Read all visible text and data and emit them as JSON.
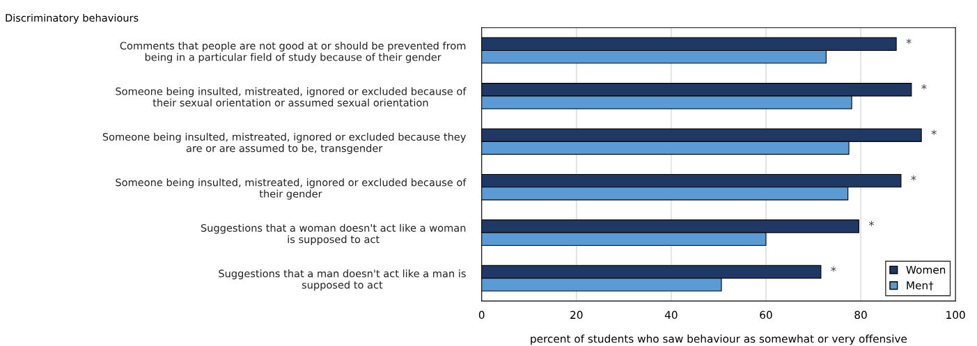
{
  "chart_data": {
    "type": "bar",
    "orientation": "horizontal",
    "title": "Discriminatory behaviours",
    "xlabel": "percent of students who saw behaviour as somewhat or very offensive",
    "categories": [
      "Comments that people are not good at or should be prevented from\nbeing in a particular field of study because of their gender",
      "Someone being insulted, mistreated, ignored or excluded because of\ntheir sexual orientation or assumed sexual orientation",
      "Someone being insulted, mistreated, ignored or excluded because they\nare or are assumed to be, transgender",
      "Someone being insulted, mistreated, ignored or excluded because of\ntheir gender",
      "Suggestions that a woman doesn't act like a woman\nis supposed to act",
      "Suggestions that a man doesn't act like a man is\nsupposed to act"
    ],
    "series": [
      {
        "name": "Women",
        "color": "#1f3864",
        "values": [
          87.5,
          90.7,
          92.8,
          88.5,
          79.6,
          71.6
        ]
      },
      {
        "name": "Men†",
        "color": "#5b9bd5",
        "values": [
          72.7,
          78.1,
          77.5,
          77.3,
          60.0,
          50.6
        ]
      }
    ],
    "annotations": [
      {
        "text": "*",
        "x": 87.5,
        "y": "Comments that people are not good at or should be prevented from\nbeing in a particular field of study because of their gender"
      },
      {
        "text": "*",
        "x": 90.7,
        "y": "Someone being insulted, mistreated, ignored or excluded because of\ntheir sexual orientation or assumed sexual orientation"
      },
      {
        "text": "*",
        "x": 92.8,
        "y": "Someone being insulted, mistreated, ignored or excluded because they\nare or are assumed to be, transgender"
      },
      {
        "text": "*",
        "x": 88.5,
        "y": "Someone being insulted, mistreated, ignored or excluded because of\ntheir gender"
      },
      {
        "text": "*",
        "x": 79.6,
        "y": "Suggestions that a woman doesn't act like a woman\nis supposed to act"
      },
      {
        "text": "*",
        "x": 71.6,
        "y": "Suggestions that a man doesn't act like a man is\nsupposed to act"
      }
    ],
    "xlim": [
      0,
      100
    ],
    "xticks": [
      0,
      20,
      40,
      60,
      80,
      100
    ],
    "grid": "x",
    "legend": "bottom right"
  }
}
